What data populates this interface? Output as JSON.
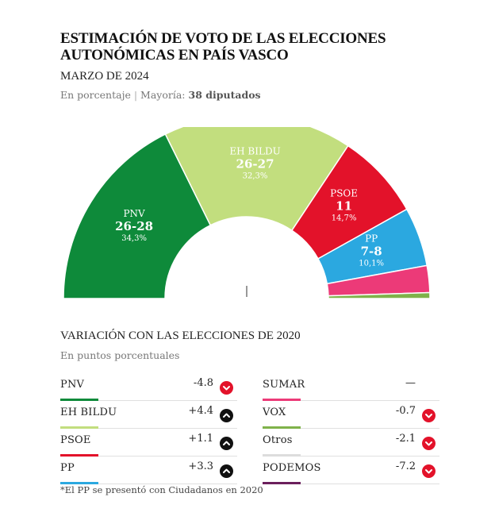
{
  "title": "ESTIMACIÓN DE VOTO DE LAS ELECCIONES AUTONÓMICAS EN PAÍS VASCO",
  "date": "MARZO DE 2024",
  "subtitle": {
    "unit": "En porcentaje",
    "majority_label": "Mayoría:",
    "majority_value": "38 diputados"
  },
  "chart_data": [
    {
      "type": "pie",
      "variant": "semicircle-donut",
      "series": [
        {
          "name": "PNV",
          "seats": "26-28",
          "pct_label": "34,3%",
          "value": 34.3,
          "color": "#0e8a3a"
        },
        {
          "name": "EH BILDU",
          "seats": "26-27",
          "pct_label": "32,3%",
          "value": 32.3,
          "color": "#c2de7e"
        },
        {
          "name": "PSOE",
          "seats": "11",
          "pct_label": "14,7%",
          "value": 14.7,
          "color": "#e3122a"
        },
        {
          "name": "PP",
          "seats": "7-8",
          "pct_label": "10,1%",
          "value": 10.1,
          "color": "#2ba8e0"
        },
        {
          "name": "",
          "seats": "",
          "pct_label": "",
          "value": 4.6,
          "color": "#ec3a78"
        },
        {
          "name": "",
          "seats": "",
          "pct_label": "",
          "value": 1.0,
          "color": "#7fb24a"
        }
      ]
    },
    {
      "type": "table",
      "title": "VARIACIÓN CON LAS ELECCIONES DE 2020",
      "subtitle": "En puntos porcentuales",
      "rows": [
        {
          "party": "PNV",
          "change": "-4.8",
          "direction": "down",
          "color": "#0e8a3a"
        },
        {
          "party": "EH BILDU",
          "change": "+4.4",
          "direction": "up",
          "color": "#c2de7e"
        },
        {
          "party": "PSOE",
          "change": "+1.1",
          "direction": "up",
          "color": "#e3122a"
        },
        {
          "party": "PP",
          "change": "+3.3",
          "direction": "up",
          "color": "#2ba8e0"
        },
        {
          "party": "SUMAR",
          "change": "—",
          "direction": "none",
          "color": "#ec3a78"
        },
        {
          "party": "VOX",
          "change": "-0.7",
          "direction": "down",
          "color": "#7fb24a"
        },
        {
          "party": "Otros",
          "change": "-2.1",
          "direction": "down",
          "color": "#dddddd"
        },
        {
          "party": "PODEMOS",
          "change": "-7.2",
          "direction": "down",
          "color": "#6b1f5c"
        }
      ]
    }
  ],
  "footnote": "*El PP se presentó con Ciudadanos en 2020",
  "colors": {
    "up_arrow": "#111111",
    "down_arrow": "#e3122a"
  },
  "icons": {
    "up": "chevron-up-icon",
    "down": "chevron-down-icon"
  }
}
